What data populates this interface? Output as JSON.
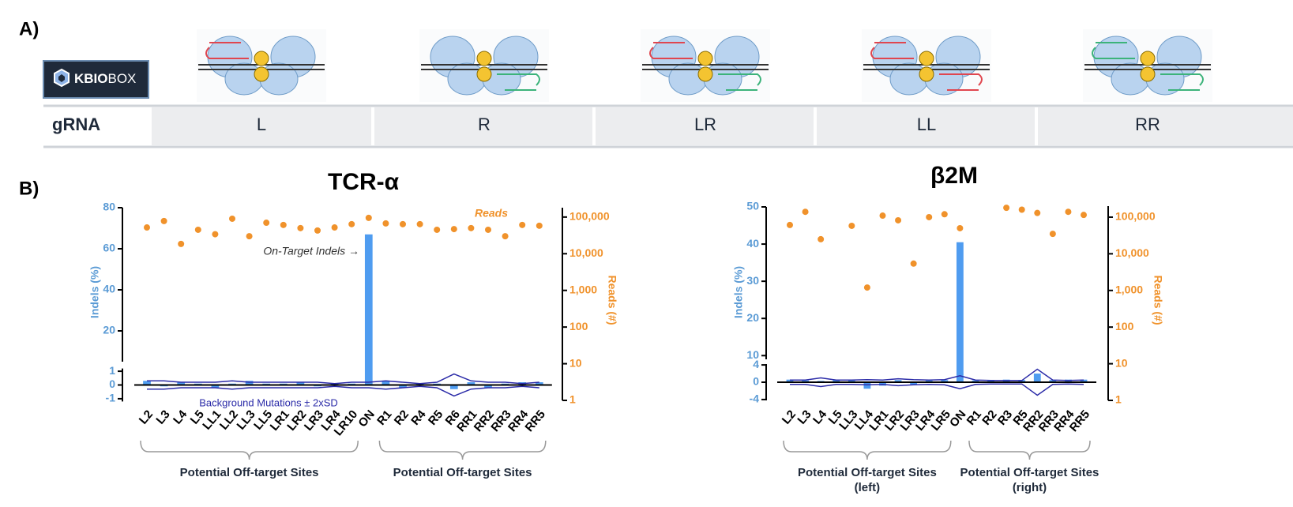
{
  "panel_a": {
    "label": "A)",
    "logo": {
      "part1": "KBIO",
      "part2": "BOX"
    },
    "table": {
      "header": "gRNA",
      "columns": [
        "L",
        "R",
        "LR",
        "LL",
        "RR"
      ]
    }
  },
  "panel_b": {
    "label": "B)"
  },
  "chart_data": [
    {
      "type": "bar",
      "title": "TCR-α",
      "categories": [
        "L2",
        "L3",
        "L4",
        "L5",
        "LL1",
        "LL2",
        "LL3",
        "LL5",
        "LR1",
        "LR2",
        "LR3",
        "LR4",
        "LR10",
        "ON",
        "R1",
        "R2",
        "R4",
        "R5",
        "R6",
        "RR1",
        "RR2",
        "RR3",
        "RR4",
        "RR5"
      ],
      "indels": {
        "color": "#4f9cf0",
        "values": [
          0.3,
          -0.1,
          0.2,
          0.1,
          -0.2,
          0.1,
          0.3,
          0.1,
          0.1,
          0.2,
          -0.1,
          0.1,
          0.1,
          67,
          0.3,
          -0.2,
          0.1,
          0.1,
          -0.3,
          0.2,
          -0.2,
          0.1,
          0.2,
          0.2
        ]
      },
      "reads": {
        "name": "Reads",
        "color": "#f0922b",
        "axis": "y2",
        "values": [
          52000,
          78000,
          18500,
          45000,
          34000,
          90000,
          30000,
          70000,
          61000,
          50000,
          43000,
          52000,
          64000,
          95000,
          67000,
          64000,
          64000,
          45000,
          47000,
          50000,
          45000,
          30000,
          61000,
          58000
        ]
      },
      "background": {
        "name": "Background Mutations ± 2xSD",
        "color": "#2b2ba8",
        "values": [
          0.3,
          0.3,
          0.2,
          0.2,
          0.2,
          0.3,
          0.2,
          0.2,
          0.2,
          0.2,
          0.2,
          0.1,
          0.2,
          0.2,
          0.3,
          0.2,
          0.1,
          0.2,
          0.8,
          0.3,
          0.2,
          0.2,
          0.1,
          0.2
        ]
      },
      "ylabel": "Indels (%)",
      "y2label": "Reads (#)",
      "ylim_segments": [
        [
          -1.2,
          1.2
        ],
        [
          5,
          80
        ]
      ],
      "yticks": [
        -1,
        0,
        1,
        20,
        40,
        60,
        80
      ],
      "y2lim": [
        1,
        180000
      ],
      "y2_log": true,
      "y2ticks": [
        1,
        10,
        100,
        {
          "value": 1000,
          "label": "1,000"
        },
        {
          "value": 10000,
          "label": "10,000"
        },
        {
          "value": 100000,
          "label": "100,000"
        }
      ],
      "annotation": "On-Target Indels →",
      "groups": [
        {
          "label": "Potential Off-target Sites",
          "span": [
            0,
            12
          ]
        },
        {
          "label": "Potential Off-target Sites",
          "span": [
            14,
            23
          ]
        }
      ]
    },
    {
      "type": "bar",
      "title": "β2M",
      "categories": [
        "L2",
        "L3",
        "L4",
        "L5",
        "LL3",
        "LL4",
        "LR1",
        "LR2",
        "LR3",
        "LR4",
        "LR5",
        "ON",
        "R1",
        "R2",
        "R3",
        "R5",
        "RR2",
        "RR3",
        "RR4",
        "RR5"
      ],
      "indels": {
        "color": "#4f9cf0",
        "values": [
          0.6,
          0.4,
          0.3,
          0.5,
          0.4,
          -1.5,
          -0.8,
          0.5,
          -0.6,
          0.4,
          0.5,
          40.5,
          0.4,
          0.5,
          0.6,
          0.5,
          2.0,
          0.5,
          0.6,
          0.6
        ]
      },
      "reads": {
        "color": "#f0922b",
        "axis": "y2",
        "values": [
          61000,
          140000,
          25000,
          null,
          58000,
          1200,
          110000,
          82000,
          5400,
          100000,
          120000,
          50000,
          null,
          null,
          180000,
          160000,
          130000,
          35000,
          140000,
          115000
        ]
      },
      "background": {
        "color": "#2b2ba8",
        "values": [
          0.5,
          0.5,
          1,
          0.5,
          0.5,
          0.6,
          0.5,
          0.8,
          0.6,
          0.5,
          0.6,
          1.5,
          0.5,
          0.4,
          0.4,
          0.4,
          3,
          0.5,
          0.4,
          0.5
        ]
      },
      "ylabel": "Indels (%)",
      "y2label": "Reads (#)",
      "ylim_segments": [
        [
          -4.2,
          4.2
        ],
        [
          9,
          50
        ]
      ],
      "yticks": [
        -4,
        0,
        4,
        10,
        20,
        30,
        40,
        50
      ],
      "y2lim": [
        1,
        200000
      ],
      "y2_log": true,
      "y2ticks": [
        1,
        10,
        100,
        {
          "value": 1000,
          "label": "1,000"
        },
        {
          "value": 10000,
          "label": "10,000"
        },
        {
          "value": 100000,
          "label": "100,000"
        }
      ],
      "groups": [
        {
          "label": "Potential Off-target Sites",
          "sublabel": "(left)",
          "span": [
            0,
            10
          ]
        },
        {
          "label": "Potential Off-target Sites",
          "sublabel": "(right)",
          "span": [
            12,
            19
          ]
        }
      ]
    }
  ]
}
